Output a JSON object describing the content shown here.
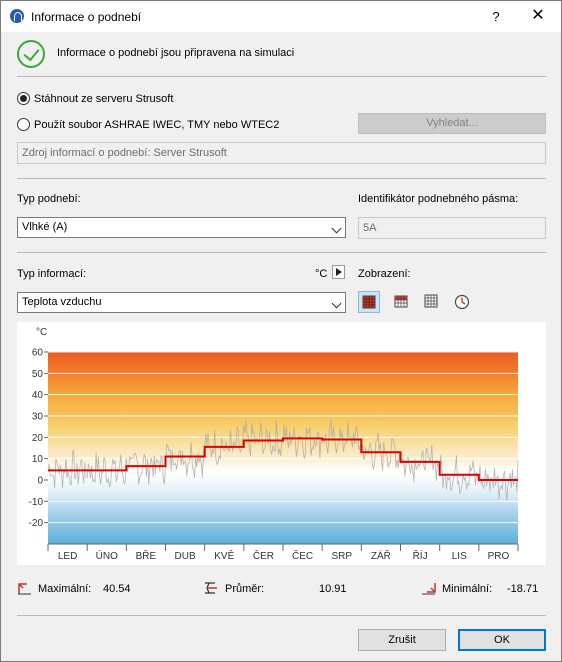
{
  "window": {
    "title": "Informace o podnebí",
    "help": "?",
    "close": "✕"
  },
  "status": {
    "message": "Informace o podnebí jsou připravena na simulaci"
  },
  "source": {
    "option_server": "Stáhnout ze serveru Strusoft",
    "option_file": "Použít soubor ASHRAE IWEC, TMY nebo WTEC2",
    "selected": "server",
    "browse_label": "Vyhledat...",
    "info_field": "Zdroj informací o podnebí: Server Strusoft"
  },
  "climate": {
    "type_label": "Typ podnebí:",
    "type_value": "Vlhké (A)",
    "zone_label": "Identifikátor podnebného pásma:",
    "zone_value": "5A"
  },
  "info": {
    "type_label": "Typ informací:",
    "unit_label": "°C",
    "type_value": "Teplota vzduchu",
    "display_label": "Zobrazení:",
    "display_modes": [
      "grid-large-icon",
      "grid-medium-icon",
      "grid-small-icon",
      "clock-icon"
    ]
  },
  "colors": {
    "accent": "#0078d7",
    "line": "#e00000",
    "ok_green": "#3ba83b"
  },
  "chart_data": {
    "type": "line",
    "ylabel": "°C",
    "ylim": [
      -30,
      60
    ],
    "yticks": [
      60,
      50,
      40,
      30,
      20,
      10,
      0,
      -10,
      -20
    ],
    "categories": [
      "LED",
      "ÚNO",
      "BŘE",
      "DUB",
      "KVĚ",
      "ČER",
      "ČEC",
      "SRP",
      "ZÁŘ",
      "ŘÍJ",
      "LIS",
      "PRO"
    ],
    "series": [
      {
        "type": "step",
        "values": [
          4.5,
          4.5,
          6.5,
          11,
          15.5,
          18.5,
          19.5,
          19,
          13,
          8.5,
          2.5,
          0
        ]
      }
    ]
  },
  "stats": {
    "max_label": "Maximální:",
    "max_value": "40.54",
    "avg_label": "Průměr:",
    "avg_value": "10.91",
    "min_label": "Minimální:",
    "min_value": "-18.71"
  },
  "buttons": {
    "cancel": "Zrušit",
    "ok": "OK"
  }
}
